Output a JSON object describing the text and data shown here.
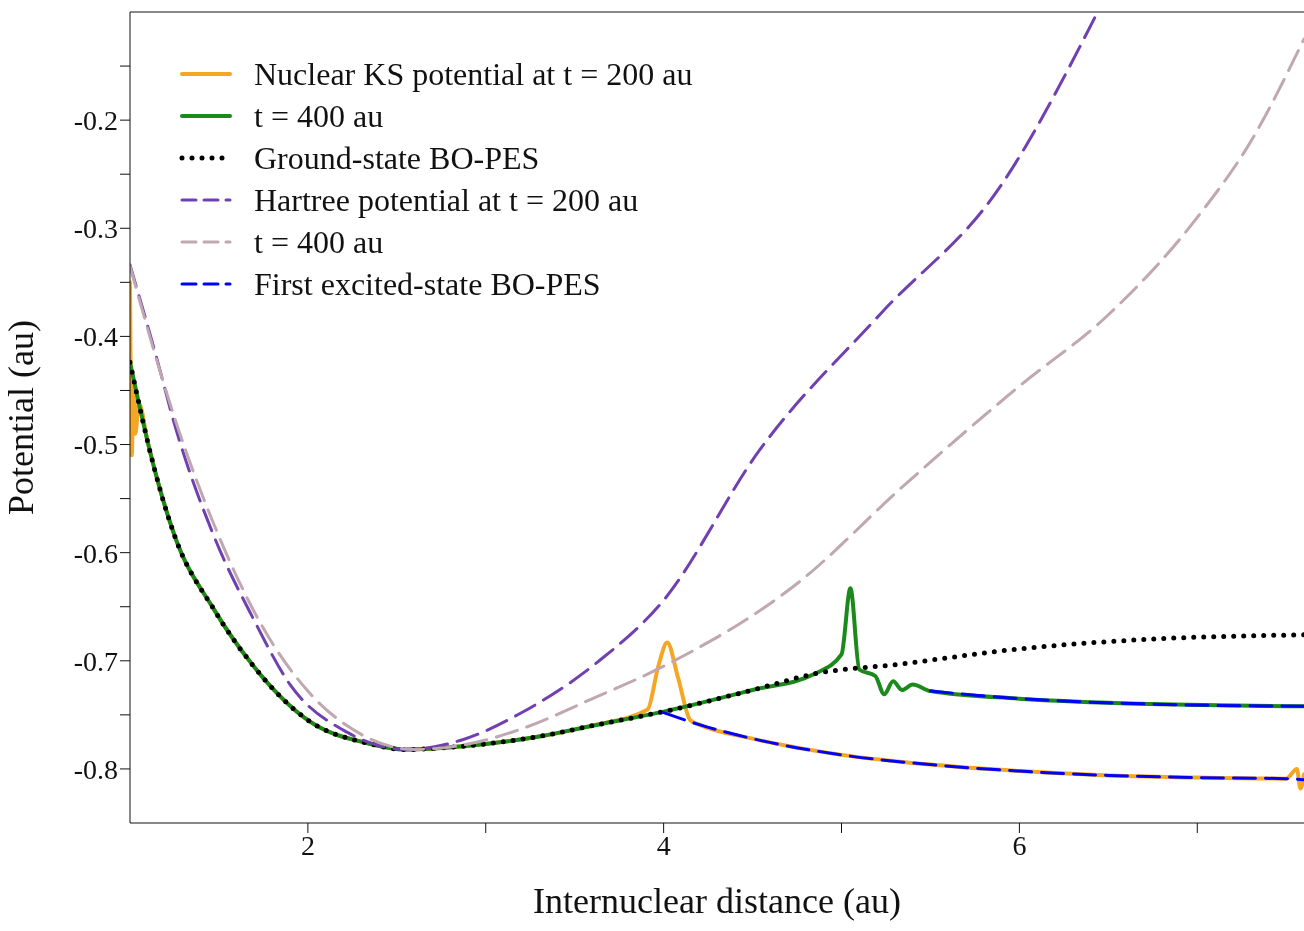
{
  "chart_data": {
    "type": "line",
    "xlabel": "Internuclear distance (au)",
    "ylabel": "Potential (au)",
    "xlim": [
      1,
      7.6
    ],
    "xticks": [
      2,
      {
        "value": 3,
        "label": null
      },
      4,
      {
        "value": 5,
        "label": null
      },
      6,
      {
        "value": 7,
        "label": null
      }
    ],
    "ylim": [
      -0.85,
      -0.1
    ],
    "yticks": [
      {
        "value": -0.15,
        "label": null
      },
      -0.2,
      {
        "value": -0.25,
        "label": null
      },
      -0.3,
      {
        "value": -0.35,
        "label": null
      },
      -0.4,
      {
        "value": -0.45,
        "label": null
      },
      -0.5,
      {
        "value": -0.55,
        "label": null
      },
      -0.6,
      {
        "value": -0.65,
        "label": null
      },
      -0.7,
      {
        "value": -0.75,
        "label": null
      },
      -0.8
    ],
    "legend": "top left",
    "marker": "none",
    "series": [
      {
        "name": "Nuclear KS potential at t = 200 au",
        "color": "#f5a623",
        "line_style": "solid",
        "x": [
          1.0,
          1.01,
          1.02,
          1.03,
          1.05,
          1.1,
          1.25,
          1.47,
          1.69,
          2.01,
          2.33,
          2.55,
          2.87,
          3.3,
          3.6,
          3.91,
          3.97,
          4.02,
          4.08,
          4.15,
          4.2,
          4.5,
          5.0,
          5.5,
          6.0,
          6.5,
          7.0,
          7.5,
          7.56,
          7.58,
          7.6
        ],
        "values": [
          -0.35,
          -0.51,
          -0.44,
          -0.49,
          -0.462,
          -0.498,
          -0.584,
          -0.652,
          -0.704,
          -0.756,
          -0.776,
          -0.782,
          -0.779,
          -0.77,
          -0.76,
          -0.745,
          -0.705,
          -0.683,
          -0.715,
          -0.755,
          -0.759,
          -0.772,
          -0.787,
          -0.796,
          -0.802,
          -0.806,
          -0.808,
          -0.809,
          -0.8,
          -0.818,
          -0.805
        ]
      },
      {
        "name": "t = 400 au",
        "color": "#1a8a1a",
        "line_style": "solid",
        "x": [
          1.0,
          1.05,
          1.1,
          1.25,
          1.47,
          1.69,
          2.01,
          2.33,
          2.55,
          2.87,
          3.3,
          3.6,
          4.0,
          4.5,
          4.85,
          5.0,
          5.05,
          5.1,
          5.19,
          5.24,
          5.29,
          5.34,
          5.4,
          5.5,
          6.0,
          6.74,
          7.6
        ],
        "values": [
          -0.424,
          -0.462,
          -0.498,
          -0.584,
          -0.652,
          -0.704,
          -0.756,
          -0.776,
          -0.782,
          -0.779,
          -0.77,
          -0.76,
          -0.747,
          -0.727,
          -0.712,
          -0.694,
          -0.633,
          -0.708,
          -0.714,
          -0.731,
          -0.719,
          -0.727,
          -0.722,
          -0.728,
          -0.735,
          -0.74,
          -0.742
        ]
      },
      {
        "name": "Ground-state BO-PES",
        "color": "#000000",
        "line_style": "dotted",
        "x": [
          1.0,
          1.05,
          1.1,
          1.25,
          1.47,
          1.69,
          2.01,
          2.33,
          2.55,
          2.87,
          3.3,
          3.6,
          4.0,
          4.5,
          4.85,
          5.33,
          6.0,
          6.74,
          7.6
        ],
        "values": [
          -0.424,
          -0.462,
          -0.498,
          -0.584,
          -0.652,
          -0.704,
          -0.756,
          -0.776,
          -0.782,
          -0.779,
          -0.77,
          -0.76,
          -0.747,
          -0.727,
          -0.712,
          -0.703,
          -0.689,
          -0.68,
          -0.676
        ]
      },
      {
        "name": "Hartree potential at t = 200 au",
        "color": "#7040b0",
        "line_style": "dashed",
        "x": [
          1.0,
          1.15,
          1.25,
          1.47,
          1.69,
          1.9,
          2.22,
          2.55,
          2.87,
          3.19,
          3.63,
          3.99,
          4.54,
          5.22,
          5.89,
          6.44
        ],
        "values": [
          -0.334,
          -0.42,
          -0.481,
          -0.584,
          -0.66,
          -0.722,
          -0.766,
          -0.782,
          -0.773,
          -0.749,
          -0.701,
          -0.646,
          -0.505,
          -0.379,
          -0.262,
          -0.1
        ]
      },
      {
        "name": "t = 400 au",
        "color": "#c0a8b0",
        "line_style": "dashed",
        "x": [
          1.0,
          1.25,
          1.5,
          1.75,
          2.0,
          2.3,
          2.6,
          2.9,
          3.2,
          3.6,
          4.0,
          4.77,
          5.33,
          6.0,
          6.5,
          7.0,
          7.3,
          7.6
        ],
        "values": [
          -0.335,
          -0.475,
          -0.585,
          -0.67,
          -0.728,
          -0.768,
          -0.782,
          -0.777,
          -0.763,
          -0.735,
          -0.705,
          -0.626,
          -0.541,
          -0.446,
          -0.38,
          -0.29,
          -0.22,
          -0.125
        ]
      },
      {
        "name": "First excited-state BO-PES",
        "color": "#0000ff",
        "line_style": "dashed",
        "x": [
          4.0,
          4.2,
          4.5,
          5.0,
          5.5,
          6.0,
          6.5,
          7.0,
          7.5,
          7.6
        ],
        "values": [
          -0.748,
          -0.759,
          -0.772,
          -0.787,
          -0.796,
          -0.802,
          -0.806,
          -0.808,
          -0.809,
          -0.81
        ]
      },
      {
        "color": "#0000ff",
        "line_style": "dashed",
        "x": [
          5.5,
          6.0,
          6.74,
          7.6
        ],
        "values": [
          -0.728,
          -0.735,
          -0.74,
          -0.742
        ]
      }
    ]
  }
}
